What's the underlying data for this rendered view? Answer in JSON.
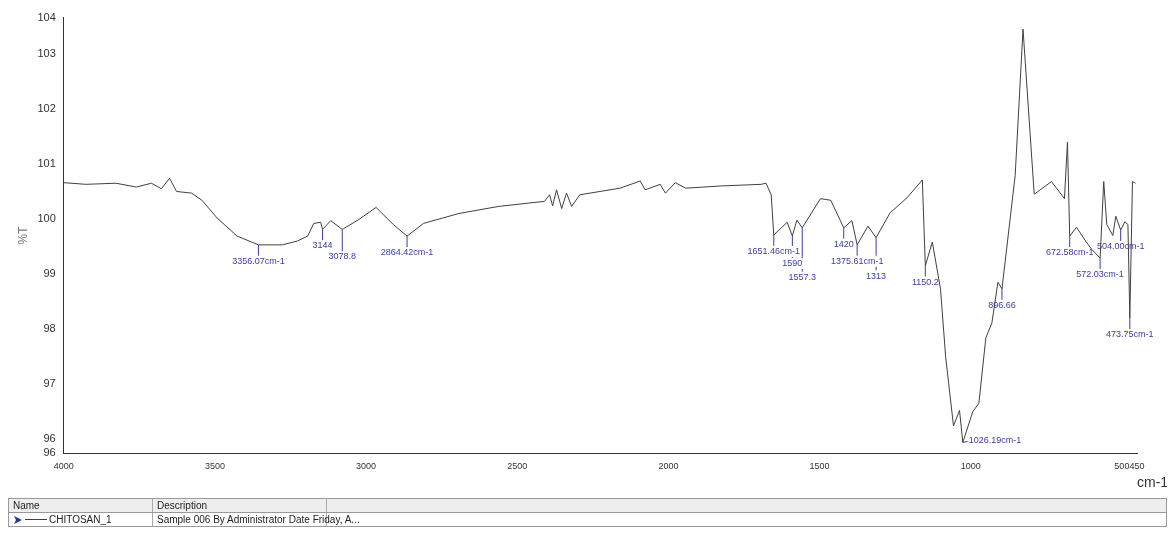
{
  "chart_data": {
    "type": "line",
    "xlabel": "cm-1",
    "ylabel": "%T",
    "xlim": [
      4000,
      450
    ],
    "ylim": [
      95.74,
      103.66
    ],
    "xticks": [
      4000,
      3500,
      3000,
      2500,
      2000,
      1500,
      1000,
      500,
      450
    ],
    "yticks": [
      {
        "value": 95.74,
        "label": "96"
      },
      96,
      97,
      98,
      99,
      100,
      101,
      102,
      103,
      {
        "value": 103.66,
        "label": "104"
      }
    ],
    "grid": false,
    "marker": "none",
    "line_style": "solid",
    "legend": "bottom left",
    "series": [
      {
        "name": "CHITOSAN_1",
        "color": "#404040",
        "x": [
          4000,
          3927,
          3827,
          3760,
          3710,
          3677,
          3650,
          3627,
          3577,
          3543,
          3493,
          3427,
          3356.07,
          3277,
          3227,
          3193,
          3173,
          3150,
          3144,
          3117,
          3078.8,
          3027,
          2967,
          2910,
          2864.42,
          2810,
          2693,
          2560,
          2410,
          2393,
          2383,
          2370,
          2353,
          2337,
          2320,
          2293,
          2160,
          2093,
          2077,
          2027,
          2010,
          1977,
          1943,
          1827,
          1693,
          1677,
          1660,
          1651.46,
          1607,
          1590,
          1575,
          1557.3,
          1497,
          1463,
          1420,
          1393,
          1375.61,
          1340,
          1313,
          1267,
          1210,
          1160,
          1150.2,
          1127,
          1100,
          1083,
          1057,
          1037,
          1026.19,
          993,
          973,
          950,
          930,
          910,
          896.66,
          853,
          827,
          790,
          733,
          690,
          680,
          672.58,
          650,
          620,
          600,
          572.03,
          560,
          550,
          530,
          520,
          504,
          490,
          480,
          473.75,
          465,
          455
        ],
        "values": [
          100.66,
          100.63,
          100.65,
          100.58,
          100.65,
          100.55,
          100.74,
          100.5,
          100.47,
          100.34,
          100.02,
          99.69,
          99.53,
          99.53,
          99.6,
          99.69,
          99.92,
          99.94,
          99.81,
          99.97,
          99.81,
          99.98,
          100.21,
          99.9,
          99.69,
          99.92,
          100.1,
          100.23,
          100.32,
          100.44,
          100.24,
          100.53,
          100.19,
          100.47,
          100.23,
          100.44,
          100.56,
          100.69,
          100.53,
          100.63,
          100.47,
          100.66,
          100.56,
          100.6,
          100.63,
          100.65,
          100.44,
          99.71,
          99.94,
          99.69,
          99.98,
          99.84,
          100.37,
          100.34,
          99.84,
          99.97,
          99.53,
          99.87,
          99.66,
          100.11,
          100.39,
          100.71,
          99.15,
          99.58,
          98.73,
          97.5,
          96.24,
          96.52,
          95.94,
          96.5,
          96.65,
          97.84,
          98.11,
          98.85,
          98.73,
          100.79,
          103.45,
          100.45,
          100.68,
          100.37,
          101.4,
          99.69,
          99.85,
          99.6,
          99.45,
          99.29,
          100.68,
          99.9,
          99.7,
          100.05,
          99.8,
          99.95,
          99.9,
          98.2,
          100.68,
          100.65
        ]
      }
    ],
    "annotations": [
      "Name",
      "Description",
      "Sample 006 By Administrator Date Friday, A...",
      {
        "text": "3356.07cm-1",
        "x": 3356.07,
        "y": 99.53
      },
      {
        "text": "3144",
        "x": 3144,
        "y": 99.81
      },
      {
        "text": "3078.8",
        "x": 3078.8,
        "y": 99.81
      },
      {
        "text": "2864.42cm-1",
        "x": 2864.42,
        "y": 99.69
      },
      {
        "text": "1651.46cm-1",
        "x": 1651.46,
        "y": 99.71
      },
      {
        "text": "1590",
        "x": 1590,
        "y": 99.69
      },
      {
        "text": "1557.3",
        "x": 1557.3,
        "y": 99.84
      },
      {
        "text": "1420",
        "x": 1420,
        "y": 99.84
      },
      {
        "text": "1375.61cm-1",
        "x": 1375.61,
        "y": 99.53
      },
      {
        "text": "1313",
        "x": 1313,
        "y": 99.66
      },
      {
        "text": "1150.2",
        "x": 1150.2,
        "y": 99.15
      },
      {
        "text": "1026.19cm-1",
        "x": 1026.19,
        "y": 95.94
      },
      {
        "text": "896.66",
        "x": 896.66,
        "y": 98.73
      },
      {
        "text": "672.58cm-1",
        "x": 672.58,
        "y": 99.69
      },
      {
        "text": "572.03cm-1",
        "x": 572.03,
        "y": 99.29
      },
      {
        "text": "504.00cm-1",
        "x": 504,
        "y": 99.8
      },
      {
        "text": "473.75cm-1",
        "x": 473.75,
        "y": 98.2
      }
    ]
  }
}
